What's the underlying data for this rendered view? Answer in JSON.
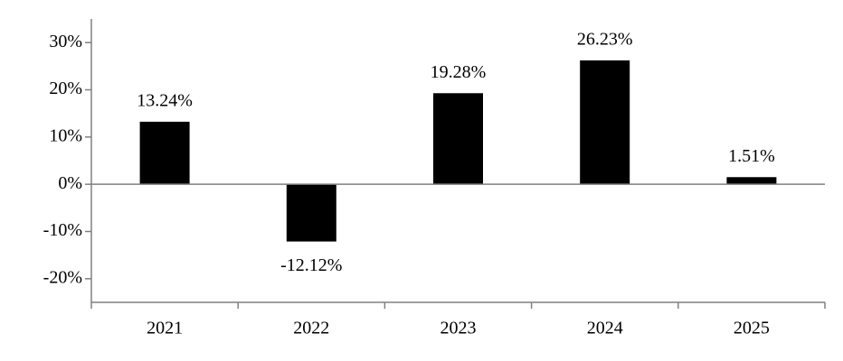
{
  "chart_data": {
    "type": "bar",
    "categories": [
      "2021",
      "2022",
      "2023",
      "2024",
      "2025"
    ],
    "values": [
      13.24,
      -12.12,
      19.28,
      26.23,
      1.51
    ],
    "value_labels": [
      "13.24%",
      "-12.12%",
      "19.28%",
      "26.23%",
      "1.51%"
    ],
    "color": "#000000",
    "ylim": [
      -25,
      35
    ],
    "yticks": [
      {
        "value": -20,
        "label": "-20%"
      },
      {
        "value": -10,
        "label": "-10%"
      },
      {
        "value": 0,
        "label": "0%"
      },
      {
        "value": 10,
        "label": "10%"
      },
      {
        "value": 20,
        "label": "20%"
      },
      {
        "value": 30,
        "label": "30%"
      }
    ],
    "grid": false
  }
}
